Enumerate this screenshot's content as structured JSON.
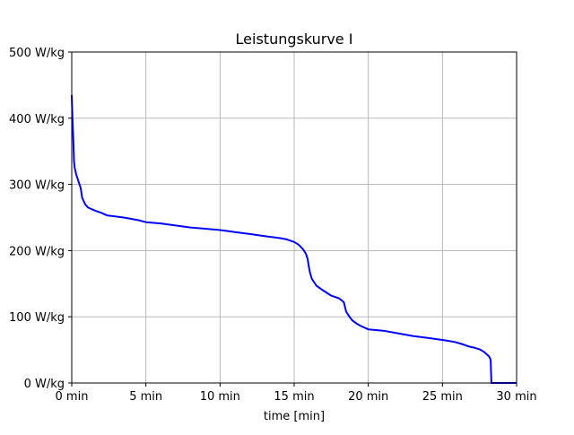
{
  "chart_data": {
    "type": "line",
    "title": "Leistungskurve I",
    "xlabel": "time [min]",
    "ylabel": "",
    "xlim": [
      0,
      30
    ],
    "ylim": [
      0,
      500
    ],
    "grid": true,
    "x_ticks": [
      0,
      5,
      10,
      15,
      20,
      25,
      30
    ],
    "x_tick_labels": [
      "0 min",
      "5 min",
      "10 min",
      "15 min",
      "20 min",
      "25 min",
      "30 min"
    ],
    "y_ticks": [
      0,
      100,
      200,
      300,
      400,
      500
    ],
    "y_tick_labels": [
      "0 W/kg",
      "100 W/kg",
      "200 W/kg",
      "300 W/kg",
      "400 W/kg",
      "500 W/kg"
    ],
    "line_color": "#0000ff",
    "series": [
      {
        "x": [
          0,
          0.05,
          0.1,
          0.15,
          0.2,
          0.3,
          0.45,
          0.6,
          0.7,
          0.8,
          0.9,
          1.1,
          1.3,
          1.6,
          2.0,
          2.4,
          2.8,
          3.5,
          4.5,
          5.0,
          6.0,
          7.0,
          8.0,
          9.0,
          10.0,
          11.0,
          12.0,
          13.0,
          14.0,
          14.5,
          15.0,
          15.3,
          15.6,
          15.8,
          15.9,
          16.0,
          16.05,
          16.2,
          16.5,
          17.0,
          17.5,
          18.0,
          18.2,
          18.35,
          18.5,
          18.7,
          18.9,
          19.2,
          19.5,
          20.0,
          21.0,
          22.0,
          23.0,
          24.0,
          25.0,
          25.8,
          26.3,
          26.8,
          27.2,
          27.5,
          27.8,
          28.0,
          28.15,
          28.25,
          28.3,
          28.5,
          29.0,
          30.0
        ],
        "y": [
          435,
          400,
          370,
          335,
          325,
          315,
          305,
          295,
          280,
          275,
          270,
          265,
          263,
          260,
          257,
          253,
          252,
          250,
          246,
          243,
          241,
          238,
          235,
          233,
          231,
          228,
          225,
          222,
          219,
          217,
          213,
          209,
          202,
          195,
          188,
          175,
          168,
          157,
          147,
          139,
          132,
          128,
          125,
          122,
          108,
          101,
          95,
          90,
          86,
          81,
          79,
          75,
          71,
          68,
          65,
          62,
          59,
          55,
          53,
          51,
          47,
          43,
          40,
          35,
          0,
          0,
          0,
          0
        ]
      }
    ]
  }
}
